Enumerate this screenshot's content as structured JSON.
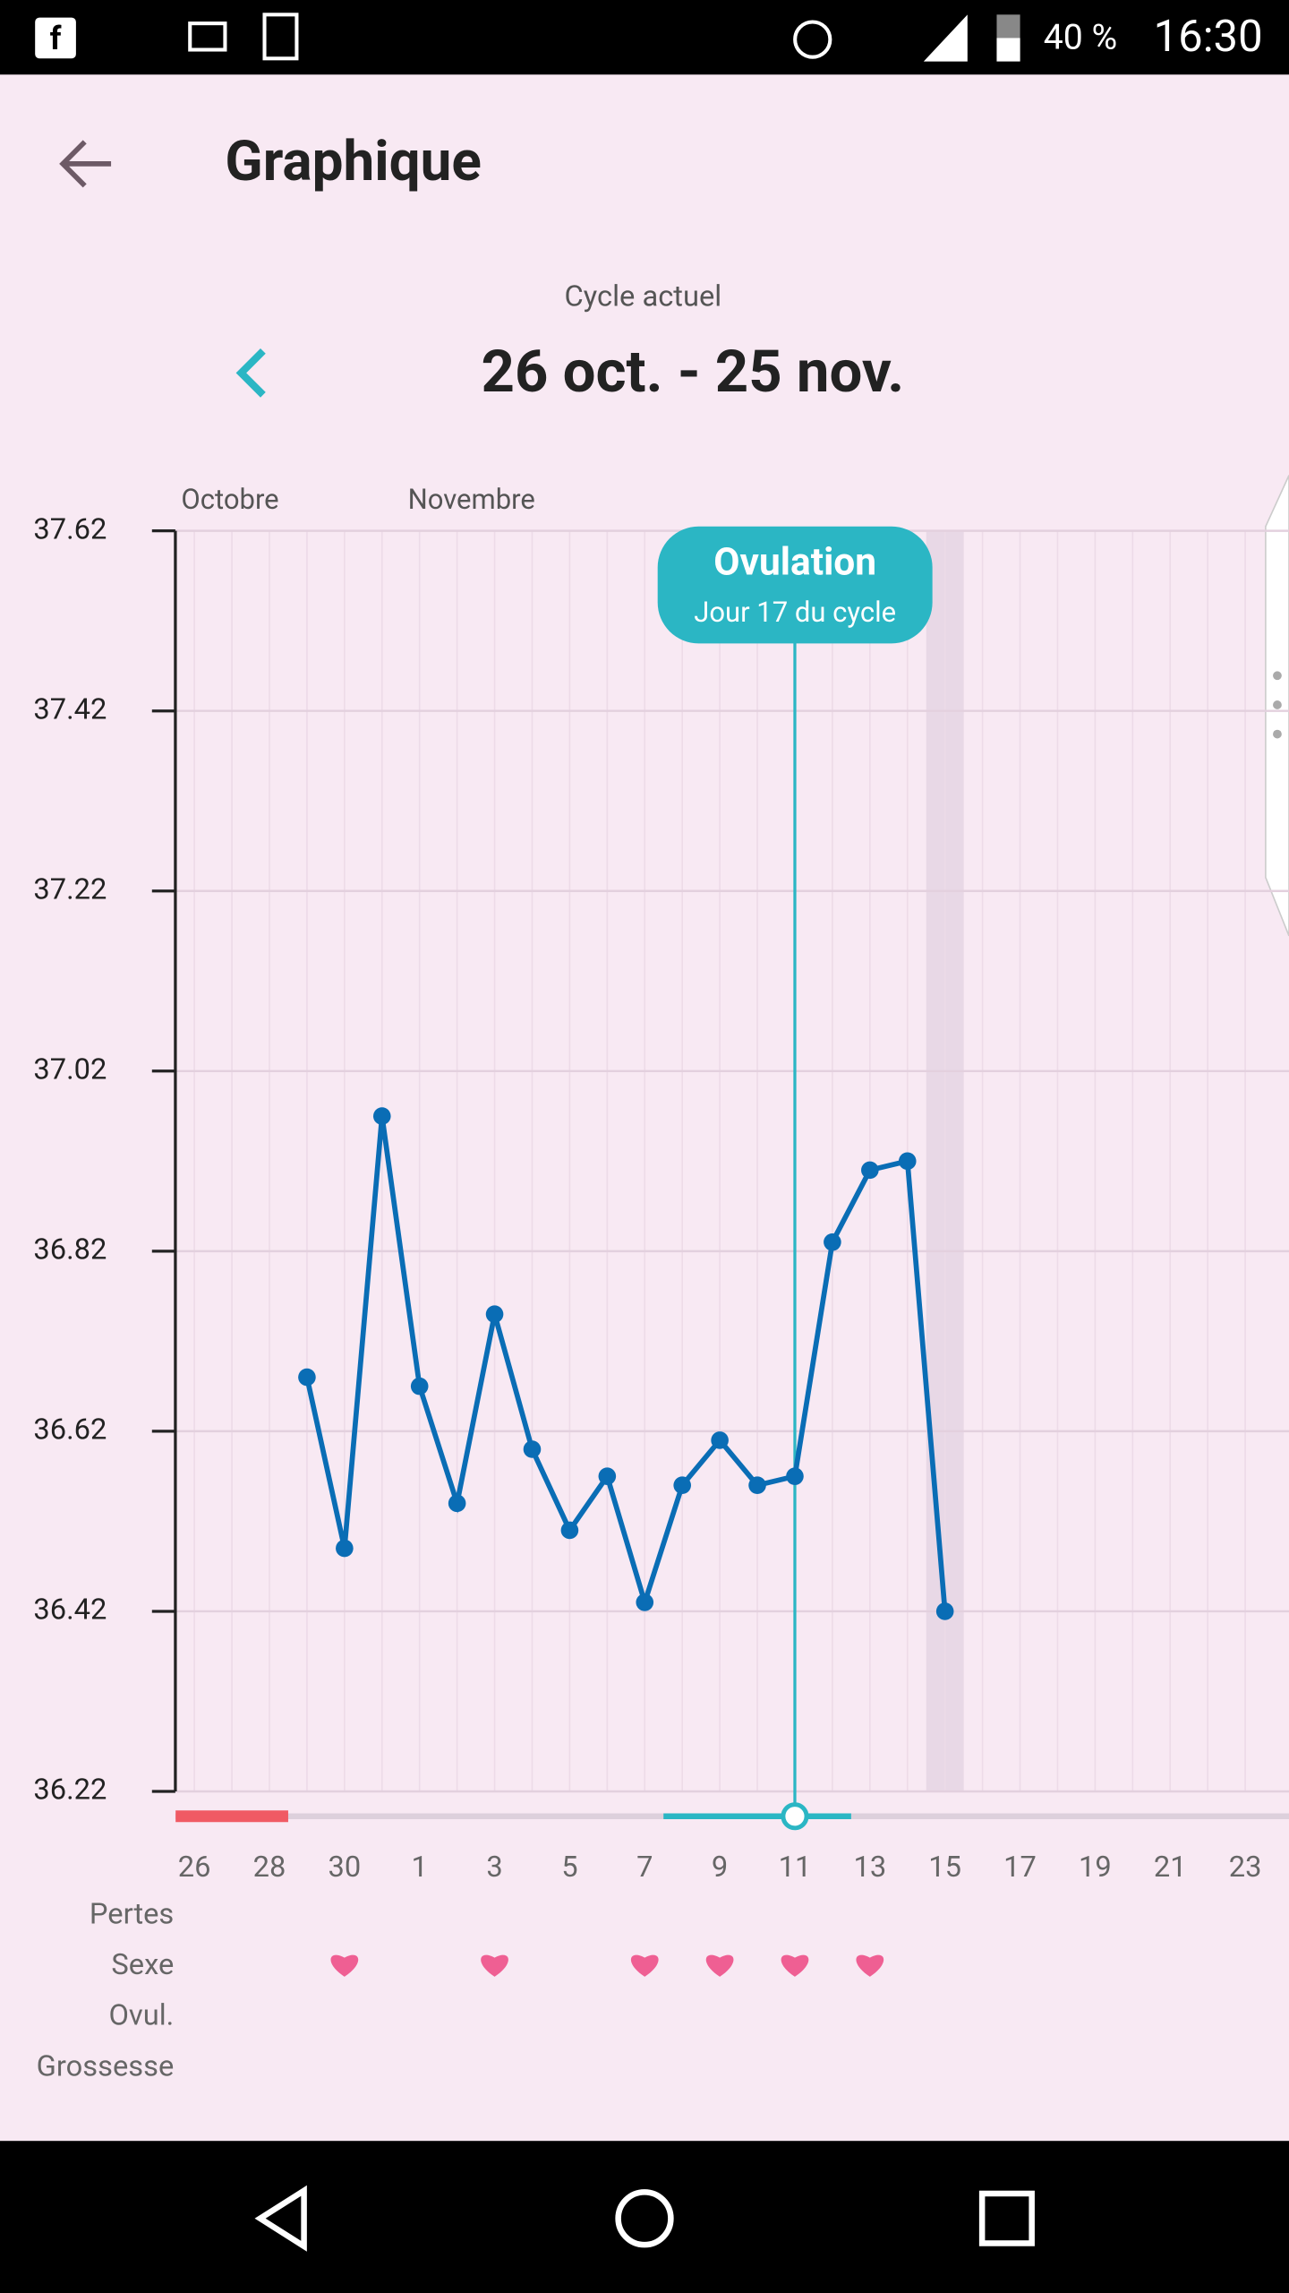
{
  "status_bar": {
    "battery": "40 %",
    "time": "16:30"
  },
  "header": {
    "title": "Graphique"
  },
  "cycle": {
    "label": "Cycle actuel",
    "range": "26 oct. - 25 nov."
  },
  "chart_data": {
    "type": "line",
    "months": [
      "Octobre",
      "Novembre"
    ],
    "categories": [
      "26",
      null,
      "28",
      null,
      "30",
      null,
      "1",
      null,
      "3",
      null,
      "5",
      null,
      "7",
      null,
      "9",
      null,
      "11",
      null,
      "13",
      null,
      "15",
      null,
      "17",
      null,
      "19",
      null,
      "21",
      null,
      "23"
    ],
    "series": [
      {
        "color": "#0a6db5",
        "values": [
          null,
          null,
          null,
          36.68,
          36.49,
          36.97,
          36.67,
          36.54,
          36.75,
          36.6,
          36.51,
          36.57,
          36.43,
          36.56,
          36.61,
          36.56,
          36.57,
          36.83,
          36.91,
          36.92,
          36.42,
          null,
          null,
          null,
          null,
          null,
          null,
          null,
          null
        ]
      }
    ],
    "ylim": [
      36.22,
      37.62
    ],
    "yticks": [
      36.22,
      36.42,
      36.62,
      36.82,
      37.02,
      37.22,
      37.42,
      37.62
    ],
    "grid": true,
    "ovulation": {
      "title": "Ovulation",
      "subtitle": "Jour 17 du cycle",
      "day": 16
    },
    "period_days": [
      0,
      3
    ],
    "fertile_days": [
      13,
      17
    ],
    "today": 20,
    "rows": [
      {
        "label": "Pertes",
        "days": []
      },
      {
        "label": "Sexe",
        "days": [
          4,
          8,
          12,
          14,
          16,
          18
        ]
      },
      {
        "label": "Ovul.",
        "days": []
      },
      {
        "label": "Grossesse",
        "days": []
      }
    ]
  }
}
